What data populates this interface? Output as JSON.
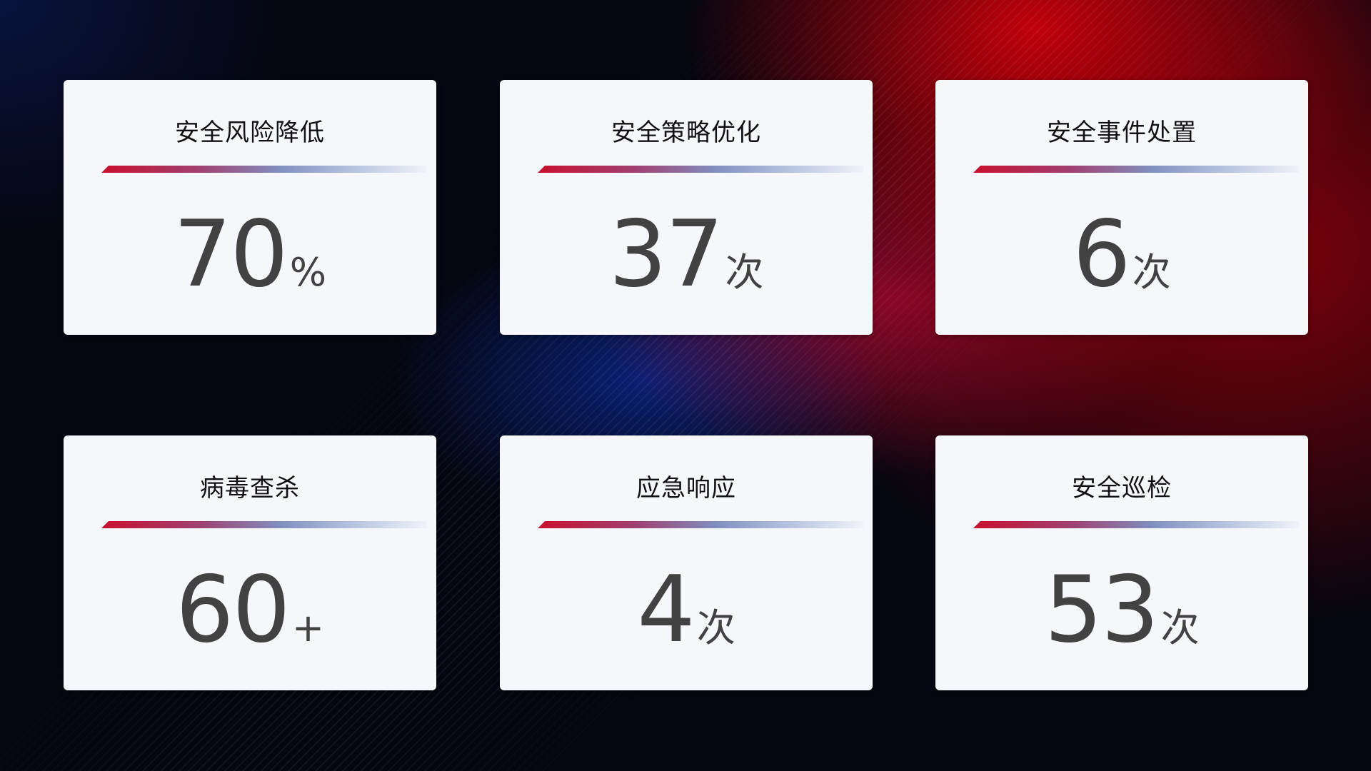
{
  "cards": [
    {
      "title": "安全风险降低",
      "value": "70",
      "suffix": "%"
    },
    {
      "title": "安全策略优化",
      "value": "37",
      "suffix": "次"
    },
    {
      "title": "安全事件处置",
      "value": "6",
      "suffix": "次"
    },
    {
      "title": "病毒查杀",
      "value": "60",
      "suffix": "+"
    },
    {
      "title": "应急响应",
      "value": "4",
      "suffix": "次"
    },
    {
      "title": "安全巡检",
      "value": "53",
      "suffix": "次"
    }
  ],
  "colors": {
    "accent_red": "#c8102e",
    "accent_blue": "#8090c0",
    "card_bg": "#f6f7fb",
    "number": "#424242"
  }
}
